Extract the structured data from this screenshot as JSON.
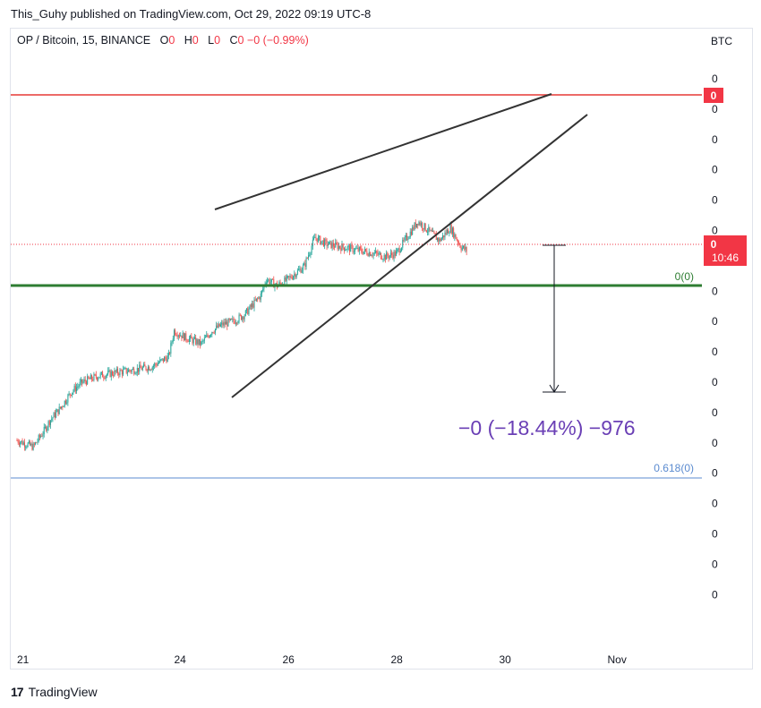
{
  "caption": "This_Guhy published on TradingView.com, Oct 29, 2022 09:19 UTC-8",
  "symbol": {
    "pair": "OP / Bitcoin, 15, BINANCE",
    "ohlc": [
      {
        "label": "O",
        "value": "0"
      },
      {
        "label": "H",
        "value": "0"
      },
      {
        "label": "L",
        "value": "0"
      },
      {
        "label": "C",
        "value": "0"
      }
    ],
    "change": "−0 (−0.99%)"
  },
  "footer": {
    "brand": "TradingView",
    "logo": "17"
  },
  "colors": {
    "up": "#26a69a",
    "down": "#ef5350",
    "resistance": "#e53935",
    "support": "#2e7d32",
    "fib": "#5b8bd0",
    "measure_text": "#6a3fb5",
    "trendline": "#333333",
    "price_tag": "#f23645"
  },
  "chart_data": {
    "type": "candlestick",
    "currency": "BTC",
    "x_ticks": [
      "21",
      "24",
      "26",
      "28",
      "30",
      "Nov"
    ],
    "y_tick_labels": [
      "0",
      "0",
      "0",
      "0",
      "0",
      "0",
      "0",
      "0",
      "0",
      "0",
      "0",
      "0",
      "0",
      "0",
      "0",
      "0",
      "0",
      "0"
    ],
    "price_path": [
      [
        21.0,
        0.3
      ],
      [
        21.3,
        0.28
      ],
      [
        21.5,
        0.33
      ],
      [
        21.6,
        0.36
      ],
      [
        21.8,
        0.4
      ],
      [
        22.0,
        0.45
      ],
      [
        22.2,
        0.48
      ],
      [
        22.5,
        0.5
      ],
      [
        22.8,
        0.51
      ],
      [
        23.2,
        0.52
      ],
      [
        23.5,
        0.53
      ],
      [
        23.7,
        0.55
      ],
      [
        23.8,
        0.56
      ],
      [
        23.9,
        0.64
      ],
      [
        24.1,
        0.62
      ],
      [
        24.4,
        0.6
      ],
      [
        24.6,
        0.64
      ],
      [
        24.8,
        0.66
      ],
      [
        25.0,
        0.67
      ],
      [
        25.2,
        0.69
      ],
      [
        25.5,
        0.75
      ],
      [
        25.6,
        0.8
      ],
      [
        25.8,
        0.78
      ],
      [
        26.0,
        0.8
      ],
      [
        26.3,
        0.84
      ],
      [
        26.5,
        0.93
      ],
      [
        26.7,
        0.91
      ],
      [
        27.0,
        0.9
      ],
      [
        27.3,
        0.89
      ],
      [
        27.6,
        0.88
      ],
      [
        27.8,
        0.87
      ],
      [
        28.0,
        0.88
      ],
      [
        28.2,
        0.93
      ],
      [
        28.4,
        0.98
      ],
      [
        28.6,
        0.95
      ],
      [
        28.8,
        0.92
      ],
      [
        29.0,
        0.96
      ],
      [
        29.2,
        0.9
      ],
      [
        29.3,
        0.89
      ]
    ],
    "lines": {
      "resistance_label": "0",
      "support_label": "0(0)",
      "fib_label": "0.618(0)"
    },
    "current_price": {
      "label": "0",
      "countdown": "10:46"
    },
    "measurement": {
      "label": "−0 (−18.44%) −976",
      "percent": -18.44,
      "bars": -976
    }
  }
}
